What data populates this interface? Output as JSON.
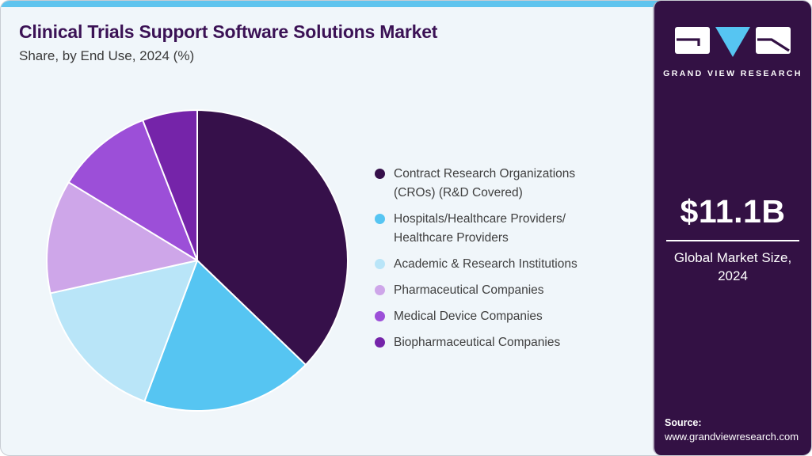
{
  "header": {
    "title": "Clinical Trials Support Software Solutions Market",
    "subtitle": "Share, by End Use, 2024 (%)"
  },
  "sidebar": {
    "brand_name": "GRAND VIEW RESEARCH",
    "market_size": "$11.1B",
    "market_caption": "Global Market Size, 2024",
    "source_label": "Source:",
    "source_url": "www.grandviewresearch.com",
    "background_color": "#331144",
    "accent_blue": "#56c5f2"
  },
  "chart_data": {
    "type": "pie",
    "title": "Clinical Trials Support Software Solutions Market Share, by End Use, 2024 (%)",
    "unit": "%",
    "direction": "clockwise",
    "start_angle_deg": 0,
    "legend_position": "right",
    "categories": [
      {
        "label": "Contract Research Organizations (CROs) (R&D Covered)",
        "lines": [
          "Contract Research Organizations",
          "(CROs) (R&D Covered)"
        ]
      },
      {
        "label": "Hospitals/Healthcare Providers/Healthcare Providers",
        "lines": [
          "Hospitals/Healthcare Providers/",
          "Healthcare Providers"
        ]
      },
      {
        "label": "Academic & Research Institutions",
        "lines": [
          "Academic & Research Institutions"
        ]
      },
      {
        "label": "Pharmaceutical Companies",
        "lines": [
          "Pharmaceutical Companies"
        ]
      },
      {
        "label": "Medical Device Companies",
        "lines": [
          "Medical Device Companies"
        ]
      },
      {
        "label": "Biopharmaceutical Companies",
        "lines": [
          "Biopharmaceutical Companies"
        ]
      }
    ],
    "values": [
      37.2,
      18.5,
      15.8,
      12.2,
      10.4,
      5.9
    ],
    "colors": [
      "#36104a",
      "#56c5f2",
      "#b9e5f8",
      "#cea6e9",
      "#9c4fd8",
      "#7524a9"
    ],
    "slice_border_color": "#ffffff"
  }
}
